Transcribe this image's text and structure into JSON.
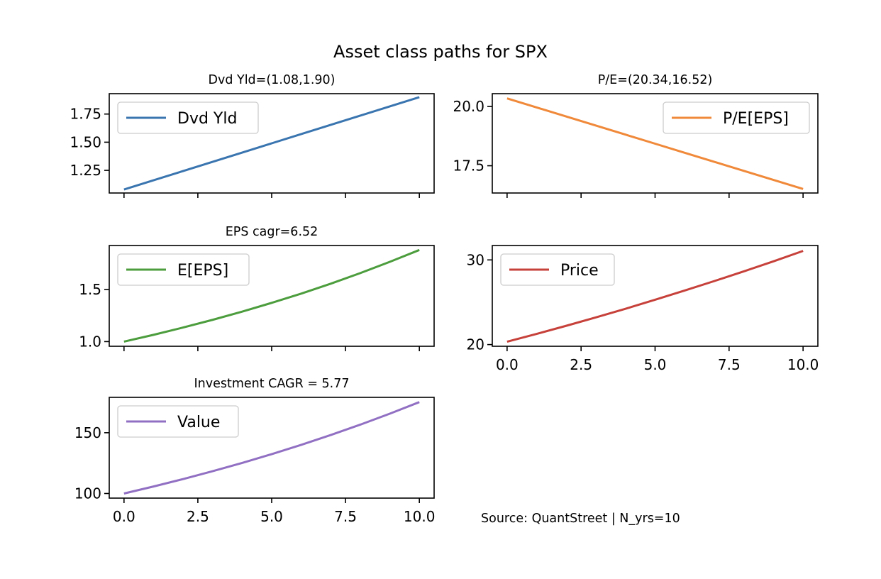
{
  "figure": {
    "title": "Asset class paths for SPX",
    "footnote": "Source: QuantStreet | N_yrs=10"
  },
  "chart_data": [
    {
      "type": "line",
      "title": "Dvd Yld=(1.08,1.90)",
      "xlim": [
        -0.5,
        10.5
      ],
      "ylim": [
        1.049,
        1.931
      ],
      "xticks": [
        0,
        2.5,
        5,
        7.5,
        10
      ],
      "yticks": [
        1.25,
        1.5,
        1.75
      ],
      "ytick_labels": [
        "1.25",
        "1.50",
        "1.75"
      ],
      "xtick_labels": [],
      "legend_position": "upper-left",
      "series": [
        {
          "name": "Dvd Yld",
          "color": "#3a75b0",
          "x": [
            0,
            1,
            2,
            3,
            4,
            5,
            6,
            7,
            8,
            9,
            10
          ],
          "y": [
            1.08,
            1.162,
            1.244,
            1.326,
            1.408,
            1.49,
            1.572,
            1.654,
            1.736,
            1.818,
            1.9
          ]
        }
      ]
    },
    {
      "type": "line",
      "title": "P/E=(20.34,16.52)",
      "xlim": [
        -0.5,
        10.5
      ],
      "ylim": [
        16.35,
        20.54
      ],
      "xticks": [
        0,
        2.5,
        5,
        7.5,
        10
      ],
      "yticks": [
        17.5,
        20.0
      ],
      "ytick_labels": [
        "17.5",
        "20.0"
      ],
      "xtick_labels": [],
      "legend_position": "upper-right",
      "series": [
        {
          "name": "P/E[EPS]",
          "color": "#f0893a",
          "x": [
            0,
            1,
            2,
            3,
            4,
            5,
            6,
            7,
            8,
            9,
            10
          ],
          "y": [
            20.34,
            19.958,
            19.576,
            19.194,
            18.812,
            18.43,
            18.048,
            17.666,
            17.284,
            16.902,
            16.52
          ]
        }
      ]
    },
    {
      "type": "line",
      "title": "EPS cagr=6.52",
      "xlim": [
        -0.5,
        10.5
      ],
      "ylim": [
        0.955,
        1.923
      ],
      "xticks": [
        0,
        2.5,
        5,
        7.5,
        10
      ],
      "yticks": [
        1.0,
        1.5
      ],
      "ytick_labels": [
        "1.0",
        "1.5"
      ],
      "xtick_labels": [],
      "legend_position": "upper-left",
      "series": [
        {
          "name": "E[EPS]",
          "color": "#4c9d3d",
          "x": [
            0,
            1,
            2,
            3,
            4,
            5,
            6,
            7,
            8,
            9,
            10
          ],
          "y": [
            1.0,
            1.065,
            1.135,
            1.209,
            1.288,
            1.372,
            1.461,
            1.556,
            1.658,
            1.766,
            1.88
          ]
        }
      ]
    },
    {
      "type": "line",
      "title": "",
      "xlim": [
        -0.5,
        10.5
      ],
      "ylim": [
        19.8,
        31.7
      ],
      "xticks": [
        0,
        2.5,
        5,
        7.5,
        10
      ],
      "yticks": [
        20,
        30
      ],
      "ytick_labels": [
        "20",
        "30"
      ],
      "xtick_labels": [
        "0.0",
        "2.5",
        "5.0",
        "7.5",
        "10.0"
      ],
      "legend_position": "upper-left",
      "series": [
        {
          "name": "Price",
          "color": "#c7413b",
          "x": [
            0,
            1,
            2,
            3,
            4,
            5,
            6,
            7,
            8,
            9,
            10
          ],
          "y": [
            20.34,
            21.26,
            22.22,
            23.21,
            24.23,
            25.29,
            26.38,
            27.5,
            28.65,
            29.83,
            31.06
          ]
        }
      ]
    },
    {
      "type": "line",
      "title": "Investment CAGR = 5.77",
      "xlim": [
        -0.5,
        10.5
      ],
      "ylim": [
        96.2,
        179.1
      ],
      "xticks": [
        0,
        2.5,
        5,
        7.5,
        10
      ],
      "yticks": [
        100,
        150
      ],
      "ytick_labels": [
        "100",
        "150"
      ],
      "xtick_labels": [
        "0.0",
        "2.5",
        "5.0",
        "7.5",
        "10.0"
      ],
      "legend_position": "upper-left",
      "series": [
        {
          "name": "Value",
          "color": "#9170c3",
          "x": [
            0,
            1,
            2,
            3,
            4,
            5,
            6,
            7,
            8,
            9,
            10
          ],
          "y": [
            100,
            105.77,
            111.87,
            118.33,
            125.16,
            132.38,
            140.02,
            148.1,
            156.65,
            165.69,
            175.2
          ]
        }
      ]
    }
  ]
}
